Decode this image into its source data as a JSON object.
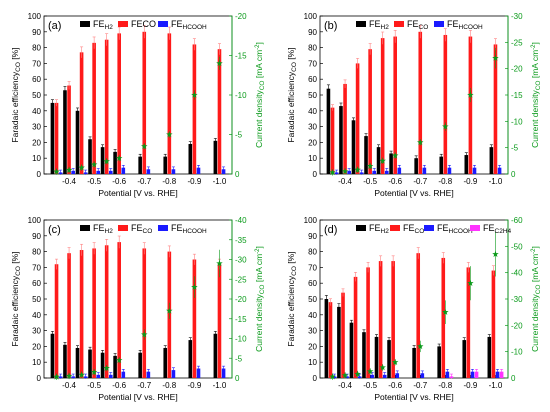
{
  "figure": {
    "x_label": "Potential [V vs. RHE]",
    "y_left_label": "Faradaic efficiency",
    "y_left_sub": "CO",
    "y_left_unit": " [%]",
    "y_right_label": "Current density",
    "y_right_sub": "CO",
    "y_right_unit": " [mA cm",
    "y_right_sup": "-2",
    "y_right_close": "]"
  },
  "colors": {
    "h2": "#000000",
    "co": "#ff1a1a",
    "hcooh": "#1a1aff",
    "c2h4": "#ff33ff",
    "current": "#0a9a1a",
    "error": "#ff8080"
  },
  "chart_data": [
    {
      "type": "bar",
      "panel_label": "(a)",
      "categories": [
        "-0.4",
        "-0.5",
        "-0.6",
        "-0.7",
        "-0.8",
        "-0.9",
        "-1.0"
      ],
      "x": [
        -0.35,
        -0.4,
        -0.45,
        -0.5,
        -0.55,
        -0.6,
        -0.7,
        -0.8,
        -0.9,
        -1.0
      ],
      "ylim": [
        0,
        100
      ],
      "y_ticks": [
        0,
        10,
        20,
        30,
        40,
        50,
        60,
        70,
        80,
        90,
        100
      ],
      "y2lim": [
        0,
        -20
      ],
      "y2_ticks": [
        0,
        -5,
        -10,
        -15,
        -20
      ],
      "legend": [
        {
          "key": "h2",
          "text": "FE",
          "sub": "H2"
        },
        {
          "key": "co",
          "text": "FECO",
          "sub": ""
        },
        {
          "key": "hcooh",
          "text": "FE",
          "sub": "HCOOH"
        }
      ],
      "series": [
        {
          "key": "h2",
          "values": [
            45,
            53,
            40,
            22,
            17,
            14,
            11,
            11,
            19,
            21
          ]
        },
        {
          "key": "co",
          "values": [
            45,
            56,
            77,
            83,
            85,
            89,
            90,
            89,
            82,
            79
          ]
        },
        {
          "key": "hcooh",
          "values": [
            1,
            2,
            1,
            2,
            2,
            4,
            3,
            3,
            4,
            3
          ]
        }
      ],
      "current_density": [
        -0.3,
        -0.5,
        -0.8,
        -1.2,
        -1.6,
        -2.0,
        -3.5,
        -5.0,
        -10.0,
        -14.0
      ]
    },
    {
      "type": "bar",
      "panel_label": "(b)",
      "categories": [
        "-0.4",
        "-0.5",
        "-0.6",
        "-0.7",
        "-0.8",
        "-0.9",
        "-1.0"
      ],
      "x": [
        -0.35,
        -0.4,
        -0.45,
        -0.5,
        -0.55,
        -0.6,
        -0.7,
        -0.8,
        -0.9,
        -1.0
      ],
      "ylim": [
        0,
        100
      ],
      "y_ticks": [
        0,
        10,
        20,
        30,
        40,
        50,
        60,
        70,
        80,
        90,
        100
      ],
      "y2lim": [
        0,
        -30
      ],
      "y2_ticks": [
        0,
        -5,
        -10,
        -15,
        -20,
        -25,
        -30
      ],
      "legend": [
        {
          "key": "h2",
          "text": "FE",
          "sub": "H2"
        },
        {
          "key": "co",
          "text": "FE",
          "sub": "CO"
        },
        {
          "key": "hcooh",
          "text": "FE",
          "sub": "HCOOH"
        }
      ],
      "series": [
        {
          "key": "h2",
          "values": [
            54,
            43,
            34,
            24,
            17,
            13,
            10,
            11,
            12,
            17
          ]
        },
        {
          "key": "co",
          "values": [
            42,
            57,
            70,
            79,
            86,
            87,
            90,
            88,
            87,
            82
          ]
        },
        {
          "key": "hcooh",
          "values": [
            1,
            2,
            1,
            2,
            2,
            4,
            4,
            4,
            4,
            4
          ]
        }
      ],
      "current_density": [
        -0.3,
        -0.5,
        -0.8,
        -1.5,
        -2.5,
        -3.5,
        -6.0,
        -9.0,
        -15.0,
        -22.0
      ]
    },
    {
      "type": "bar",
      "panel_label": "(c)",
      "categories": [
        "-0.4",
        "-0.5",
        "-0.6",
        "-0.7",
        "-0.8",
        "-0.9",
        "-1.0"
      ],
      "x": [
        -0.35,
        -0.4,
        -0.45,
        -0.5,
        -0.55,
        -0.6,
        -0.7,
        -0.8,
        -0.9,
        -1.0
      ],
      "ylim": [
        0,
        100
      ],
      "y_ticks": [
        0,
        10,
        20,
        30,
        40,
        50,
        60,
        70,
        80,
        90,
        100
      ],
      "y2lim": [
        0,
        -40
      ],
      "y2_ticks": [
        0,
        -5,
        -10,
        -15,
        -20,
        -25,
        -30,
        -35,
        -40
      ],
      "legend": [
        {
          "key": "h2",
          "text": "FE",
          "sub": "H2"
        },
        {
          "key": "co",
          "text": "FE",
          "sub": "CO"
        },
        {
          "key": "hcooh",
          "text": "FE",
          "sub": "HCOOH"
        }
      ],
      "series": [
        {
          "key": "h2",
          "values": [
            28,
            21,
            19,
            18,
            16,
            14,
            16,
            19,
            24,
            28
          ]
        },
        {
          "key": "co",
          "values": [
            72,
            79,
            81,
            82,
            84,
            86,
            82,
            80,
            75,
            72
          ]
        },
        {
          "key": "hcooh",
          "values": [
            1,
            1,
            1,
            2,
            2,
            4,
            4,
            5,
            6,
            6
          ]
        }
      ],
      "current_density": [
        -0.3,
        -0.5,
        -0.8,
        -1.5,
        -2.5,
        -4.5,
        -11.0,
        -17.0,
        -23.0,
        -29.0
      ]
    },
    {
      "type": "bar",
      "panel_label": "(d)",
      "categories": [
        "-0.4",
        "-0.5",
        "-0.6",
        "-0.7",
        "-0.8",
        "-0.9",
        "-1.0"
      ],
      "x": [
        -0.35,
        -0.4,
        -0.45,
        -0.5,
        -0.55,
        -0.6,
        -0.7,
        -0.8,
        -0.9,
        -1.0
      ],
      "ylim": [
        0,
        100
      ],
      "y_ticks": [
        0,
        10,
        20,
        30,
        40,
        50,
        60,
        70,
        80,
        90,
        100
      ],
      "y2lim": [
        0,
        -60
      ],
      "y2_ticks": [
        0,
        -10,
        -20,
        -30,
        -40,
        -50,
        -60
      ],
      "legend": [
        {
          "key": "h2",
          "text": "FE",
          "sub": "H2"
        },
        {
          "key": "co",
          "text": "FE",
          "sub": "CO"
        },
        {
          "key": "hcooh",
          "text": "FE",
          "sub": "HCOOH"
        },
        {
          "key": "c2h4",
          "text": "FE",
          "sub": "C2H4"
        }
      ],
      "series": [
        {
          "key": "h2",
          "values": [
            50,
            45,
            35,
            29,
            26,
            24,
            19,
            20,
            24,
            26
          ]
        },
        {
          "key": "co",
          "values": [
            48,
            54,
            64,
            70,
            74,
            74,
            79,
            76,
            70,
            68
          ]
        },
        {
          "key": "hcooh",
          "values": [
            1,
            1,
            1,
            2,
            2,
            3,
            3,
            4,
            4,
            4
          ]
        },
        {
          "key": "c2h4",
          "values": [
            0,
            0,
            0,
            0,
            0,
            0,
            0,
            1,
            4,
            4
          ]
        }
      ],
      "current_density": [
        -0.5,
        -1.0,
        -1.5,
        -2.5,
        -4.0,
        -6.0,
        -12.0,
        -25.0,
        -36.0,
        -47.0
      ]
    }
  ]
}
